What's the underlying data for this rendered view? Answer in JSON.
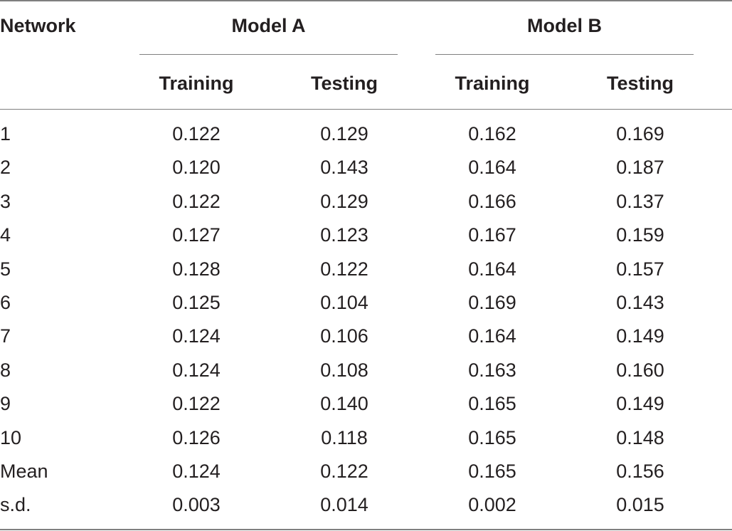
{
  "table": {
    "header": {
      "network": "Network",
      "model_a": "Model A",
      "model_b": "Model B",
      "sub": [
        "Training",
        "Testing",
        "Training",
        "Testing"
      ]
    },
    "rows": [
      {
        "label": "1",
        "values": [
          "0.122",
          "0.129",
          "0.162",
          "0.169"
        ]
      },
      {
        "label": "2",
        "values": [
          "0.120",
          "0.143",
          "0.164",
          "0.187"
        ]
      },
      {
        "label": "3",
        "values": [
          "0.122",
          "0.129",
          "0.166",
          "0.137"
        ]
      },
      {
        "label": "4",
        "values": [
          "0.127",
          "0.123",
          "0.167",
          "0.159"
        ]
      },
      {
        "label": "5",
        "values": [
          "0.128",
          "0.122",
          "0.164",
          "0.157"
        ]
      },
      {
        "label": "6",
        "values": [
          "0.125",
          "0.104",
          "0.169",
          "0.143"
        ]
      },
      {
        "label": "7",
        "values": [
          "0.124",
          "0.106",
          "0.164",
          "0.149"
        ]
      },
      {
        "label": "8",
        "values": [
          "0.124",
          "0.108",
          "0.163",
          "0.160"
        ]
      },
      {
        "label": "9",
        "values": [
          "0.122",
          "0.140",
          "0.165",
          "0.149"
        ]
      },
      {
        "label": "10",
        "values": [
          "0.126",
          "0.118",
          "0.165",
          "0.148"
        ]
      },
      {
        "label": "Mean",
        "values": [
          "0.124",
          "0.122",
          "0.165",
          "0.156"
        ]
      },
      {
        "label": "s.d.",
        "values": [
          "0.003",
          "0.014",
          "0.002",
          "0.015"
        ]
      }
    ]
  }
}
